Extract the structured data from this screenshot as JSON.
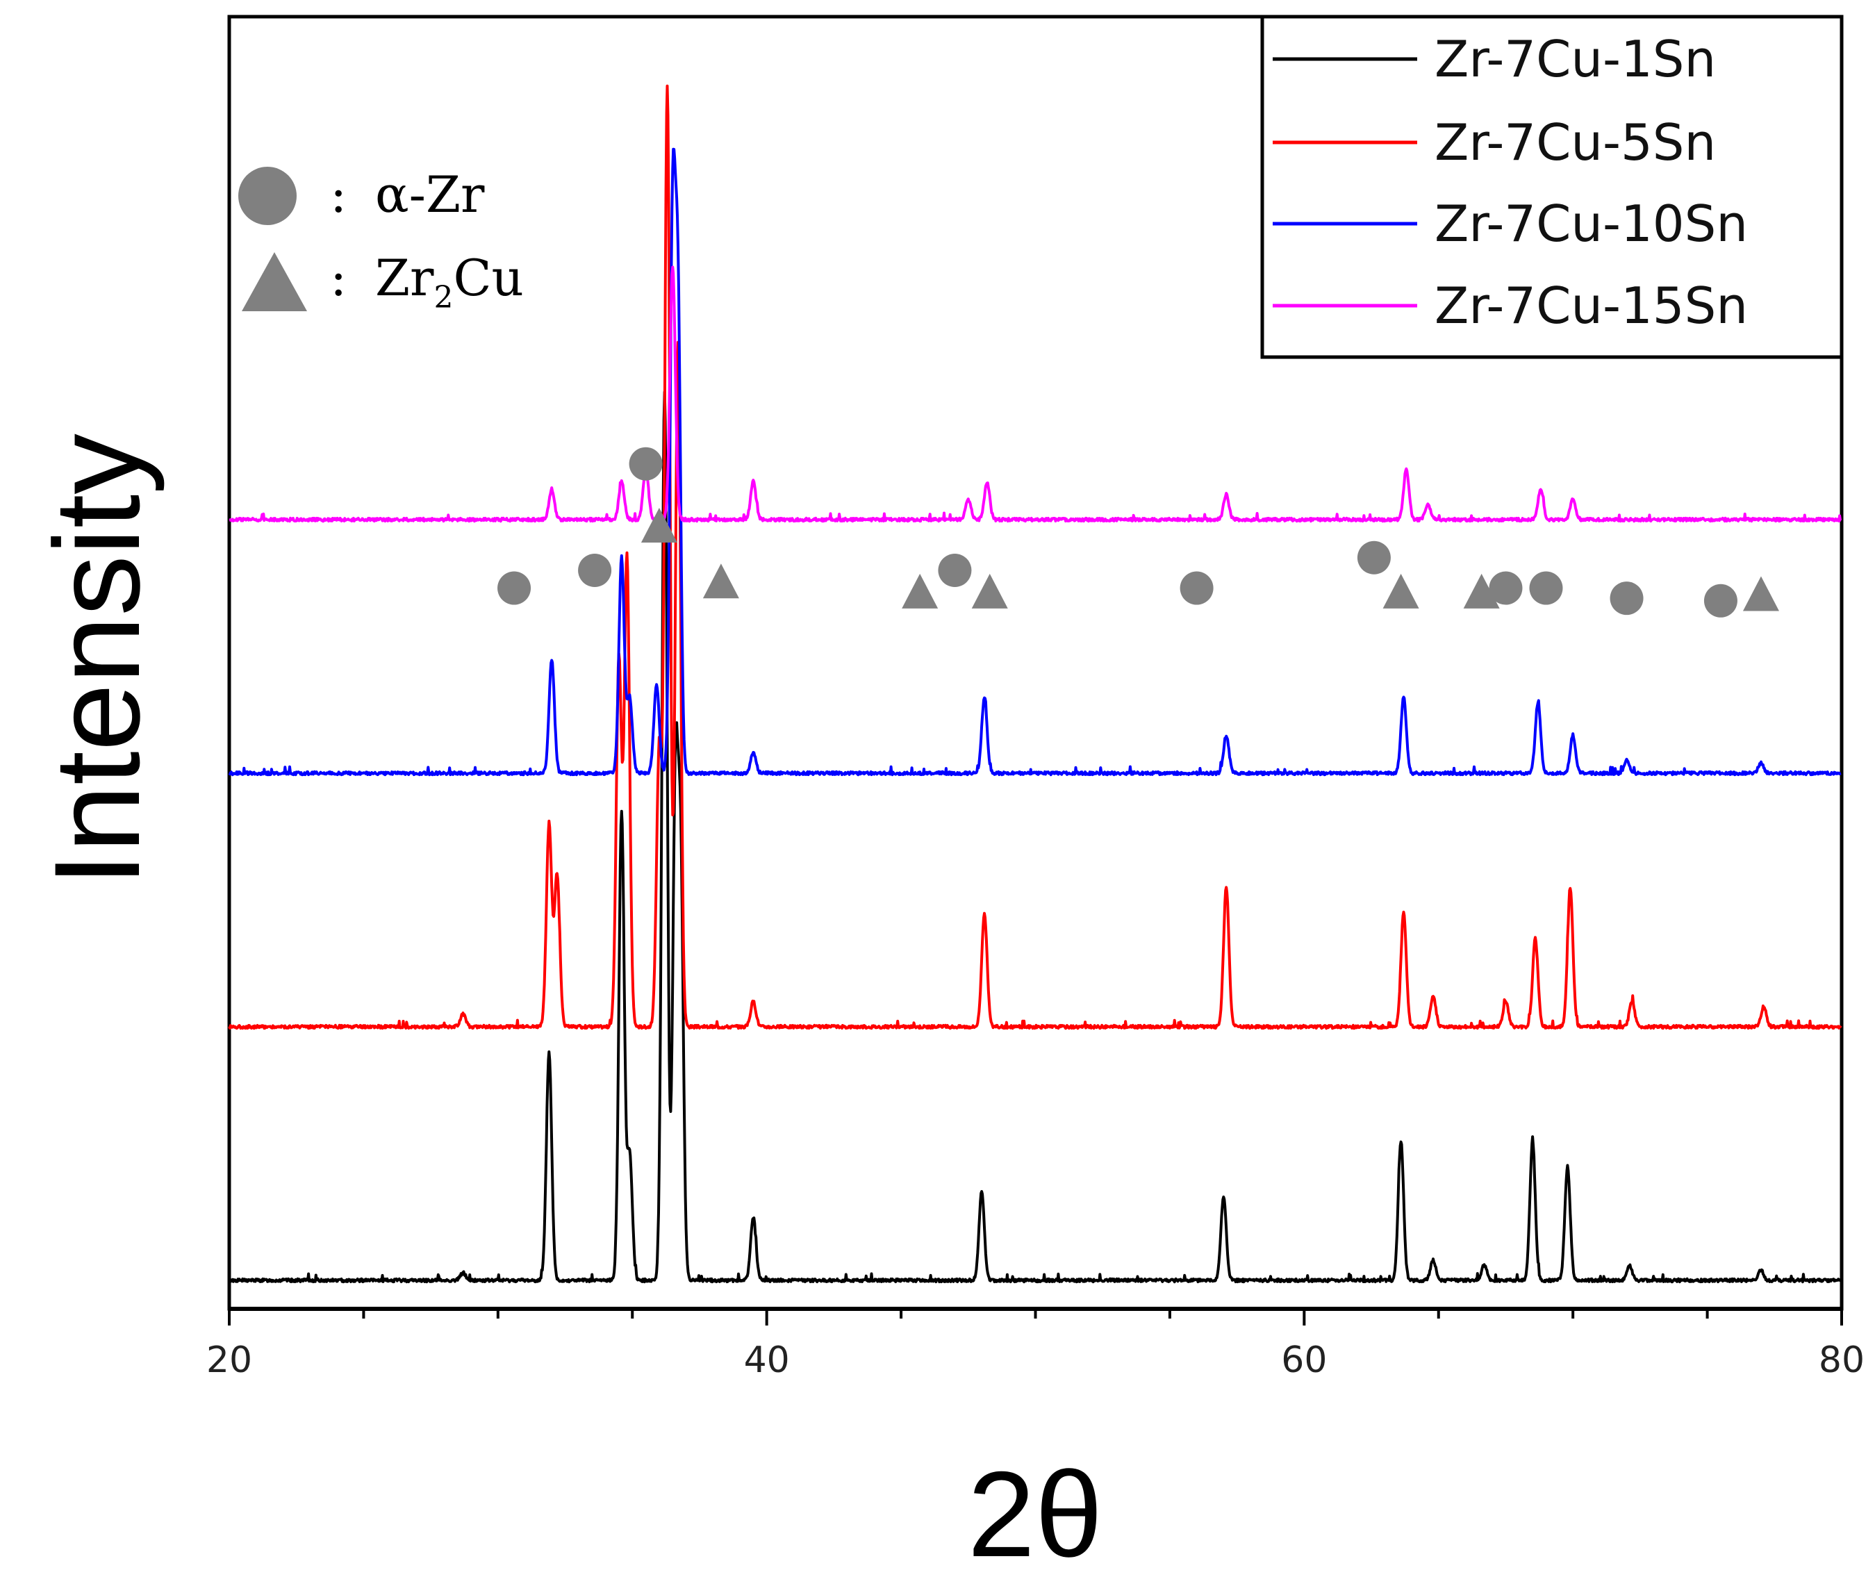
{
  "chart_data": {
    "type": "line",
    "title": "",
    "xlabel": "2θ",
    "ylabel": "Intensity",
    "xlim": [
      20,
      80
    ],
    "xticks": [
      20,
      40,
      60,
      80
    ],
    "xtick_labels": [
      "20",
      "40",
      "60",
      "80"
    ],
    "y_ticks_shown": false,
    "grid": false,
    "legend_position": "top-right",
    "series": [
      {
        "name": "Zr-7Cu-1Sn",
        "color": "#000000",
        "baseline": 0,
        "peaks": [
          [
            28.7,
            0.03
          ],
          [
            31.9,
            0.9
          ],
          [
            34.6,
            1.85
          ],
          [
            34.9,
            0.5
          ],
          [
            36.2,
            3.5
          ],
          [
            36.6,
            1.9
          ],
          [
            36.8,
            1.6
          ],
          [
            39.5,
            0.25
          ],
          [
            48.0,
            0.35
          ],
          [
            57.0,
            0.33
          ],
          [
            63.6,
            0.55
          ],
          [
            64.8,
            0.08
          ],
          [
            66.7,
            0.06
          ],
          [
            68.5,
            0.55
          ],
          [
            69.8,
            0.45
          ],
          [
            72.1,
            0.06
          ],
          [
            77.0,
            0.04
          ]
        ]
      },
      {
        "name": "Zr-7Cu-5Sn",
        "color": "#ff0000",
        "baseline": 1.0,
        "peaks": [
          [
            28.7,
            0.05
          ],
          [
            31.9,
            0.8
          ],
          [
            32.2,
            0.6
          ],
          [
            34.5,
            1.45
          ],
          [
            34.8,
            1.85
          ],
          [
            36.0,
            1.1
          ],
          [
            36.3,
            3.7
          ],
          [
            36.7,
            2.7
          ],
          [
            39.5,
            0.1
          ],
          [
            48.1,
            0.45
          ],
          [
            57.1,
            0.55
          ],
          [
            63.7,
            0.45
          ],
          [
            64.8,
            0.12
          ],
          [
            67.5,
            0.1
          ],
          [
            68.6,
            0.35
          ],
          [
            69.9,
            0.55
          ],
          [
            72.2,
            0.1
          ],
          [
            77.1,
            0.08
          ]
        ]
      },
      {
        "name": "Zr-7Cu-10Sn",
        "color": "#0000ff",
        "baseline": 2.0,
        "peaks": [
          [
            32.0,
            0.45
          ],
          [
            34.6,
            0.85
          ],
          [
            34.9,
            0.3
          ],
          [
            35.9,
            0.35
          ],
          [
            36.5,
            2.15
          ],
          [
            36.7,
            1.8
          ],
          [
            39.5,
            0.08
          ],
          [
            48.1,
            0.3
          ],
          [
            57.1,
            0.15
          ],
          [
            63.7,
            0.3
          ],
          [
            68.7,
            0.28
          ],
          [
            70.0,
            0.15
          ],
          [
            72.0,
            0.05
          ],
          [
            77.0,
            0.04
          ]
        ]
      },
      {
        "name": "Zr-7Cu-15Sn",
        "color": "#ff00ff",
        "baseline": 3.0,
        "peaks": [
          [
            32.0,
            0.12
          ],
          [
            34.6,
            0.15
          ],
          [
            35.5,
            0.2
          ],
          [
            36.5,
            1.0
          ],
          [
            39.5,
            0.15
          ],
          [
            47.5,
            0.08
          ],
          [
            48.2,
            0.15
          ],
          [
            57.1,
            0.1
          ],
          [
            63.8,
            0.2
          ],
          [
            64.6,
            0.06
          ],
          [
            68.8,
            0.12
          ],
          [
            70.0,
            0.08
          ]
        ]
      }
    ],
    "phase_markers": {
      "legend": [
        {
          "symbol": "circle",
          "label": "α-Zr"
        },
        {
          "symbol": "triangle",
          "label": "Zr",
          "subscript": "2",
          "label_suffix": "Cu"
        }
      ],
      "color": "#808080",
      "circles": [
        {
          "x": 30.6,
          "y": 2.73
        },
        {
          "x": 33.6,
          "y": 2.8
        },
        {
          "x": 47.0,
          "y": 2.8
        },
        {
          "x": 56.0,
          "y": 2.73
        },
        {
          "x": 62.6,
          "y": 2.85
        },
        {
          "x": 67.5,
          "y": 2.73
        },
        {
          "x": 69.0,
          "y": 2.73
        },
        {
          "x": 72.0,
          "y": 2.69
        },
        {
          "x": 75.5,
          "y": 2.68
        },
        {
          "x": 35.5,
          "y": 3.22
        }
      ],
      "triangles": [
        {
          "x": 36.0,
          "y": 2.97
        },
        {
          "x": 38.3,
          "y": 2.75
        },
        {
          "x": 45.7,
          "y": 2.71
        },
        {
          "x": 48.3,
          "y": 2.71
        },
        {
          "x": 63.6,
          "y": 2.71
        },
        {
          "x": 66.6,
          "y": 2.71
        },
        {
          "x": 77.0,
          "y": 2.7
        }
      ]
    }
  }
}
